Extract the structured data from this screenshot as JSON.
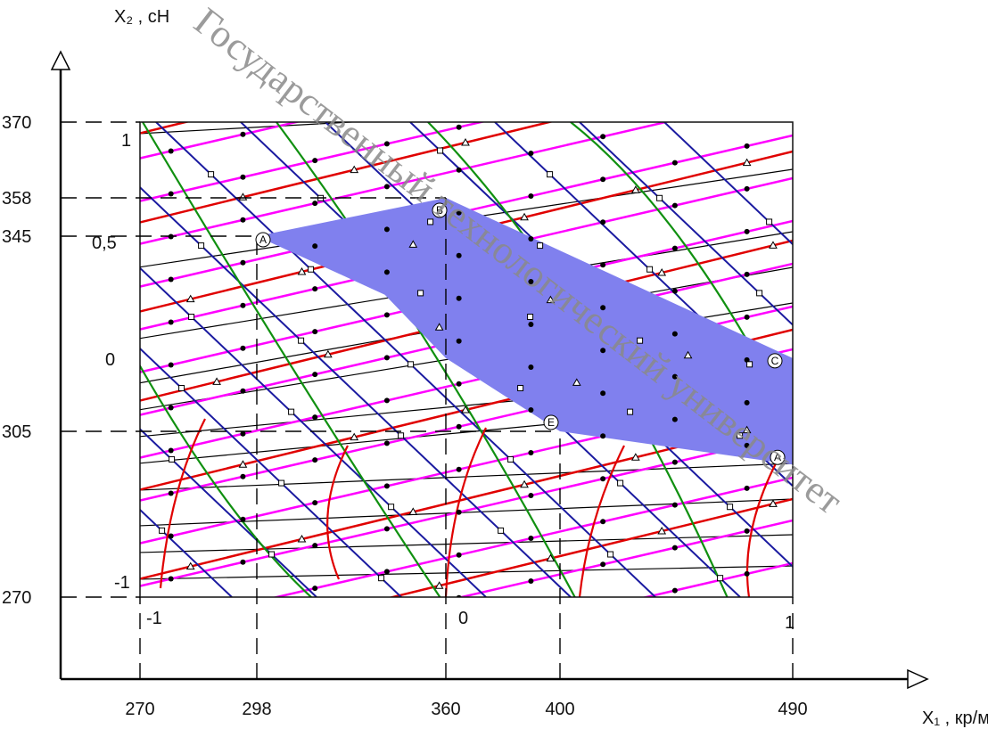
{
  "chart_data": {
    "type": "line",
    "x_axis": {
      "label": "X₁ , кр/м",
      "natural_ticks": [
        "270",
        "298",
        "360",
        "400",
        "490"
      ],
      "natural_values": [
        270,
        298,
        360,
        400,
        490
      ],
      "coded_ticks": [
        "-1",
        "0",
        "1"
      ],
      "coded_range": [
        -1,
        1
      ],
      "natural_range": [
        270,
        490
      ]
    },
    "y_axis": {
      "label": "X₂ , сН",
      "natural_ticks": [
        "370",
        "358",
        "345",
        "305",
        "270"
      ],
      "natural_values": [
        370,
        358,
        345,
        305,
        270
      ],
      "coded_ticks": [
        "1",
        "0,5",
        "0",
        "-1"
      ],
      "coded_range": [
        -1,
        1
      ],
      "natural_range": [
        270,
        370
      ]
    },
    "feasible_region": {
      "color": "#8080ee",
      "vertices": [
        {
          "label": "A",
          "x": 298,
          "y": 345
        },
        {
          "label": "B",
          "x": 360,
          "y": 358
        },
        {
          "label": "C",
          "x": 490,
          "y": 320
        },
        {
          "label": "A",
          "x": 490,
          "y": 298
        },
        {
          "label": "E",
          "x": 400,
          "y": 305
        }
      ],
      "point_labels": [
        "A",
        "B",
        "C",
        "A",
        "E"
      ]
    },
    "line_families": [
      {
        "color": "#e00000",
        "marker": "triangle"
      },
      {
        "color": "#ff00ff",
        "marker": "dot"
      },
      {
        "color": "#1a1aa0",
        "marker": "square"
      },
      {
        "color": "#109010",
        "marker": "none"
      },
      {
        "color": "#000000",
        "marker": "none"
      }
    ],
    "grid": false
  },
  "watermark": {
    "text": "Государственный технологический университет",
    "color": "#8a8a8a"
  }
}
